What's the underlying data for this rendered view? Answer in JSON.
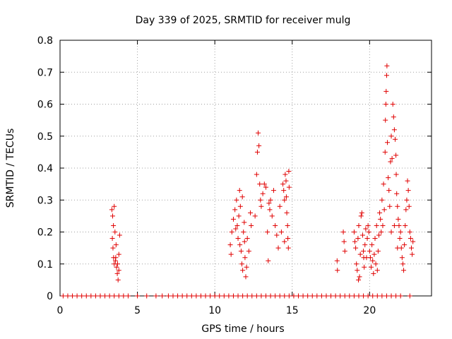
{
  "chart_data": {
    "type": "scatter",
    "title": "Day 339 of 2025, SRMTID for receiver mulg",
    "xlabel": "GPS time / hours",
    "ylabel": "SRMTID / TECUs",
    "xlim": [
      0,
      24
    ],
    "ylim": [
      0,
      0.8
    ],
    "grid": true,
    "marker": "+",
    "color": "#e00000",
    "x_ticks": [
      {
        "value": 0,
        "label": "0"
      },
      {
        "value": 5,
        "label": "5"
      },
      {
        "value": 10,
        "label": "10"
      },
      {
        "value": 15,
        "label": "15"
      },
      {
        "value": 20,
        "label": "20"
      }
    ],
    "y_ticks": [
      {
        "value": 0,
        "label": "0"
      },
      {
        "value": 0.1,
        "label": "0.1"
      },
      {
        "value": 0.2,
        "label": "0.2"
      },
      {
        "value": 0.3,
        "label": "0.3"
      },
      {
        "value": 0.4,
        "label": "0.4"
      },
      {
        "value": 0.5,
        "label": "0.5"
      },
      {
        "value": 0.6,
        "label": "0.6"
      },
      {
        "value": 0.7,
        "label": "0.7"
      },
      {
        "value": 0.8,
        "label": "0.8"
      }
    ],
    "series": [
      {
        "name": "SRMTID",
        "points": [
          [
            0.2,
            0
          ],
          [
            0.5,
            0
          ],
          [
            0.8,
            0
          ],
          [
            1.1,
            0
          ],
          [
            1.4,
            0
          ],
          [
            1.7,
            0
          ],
          [
            2.0,
            0
          ],
          [
            2.3,
            0
          ],
          [
            2.6,
            0
          ],
          [
            2.9,
            0
          ],
          [
            3.2,
            0
          ],
          [
            3.5,
            0
          ],
          [
            3.8,
            0
          ],
          [
            4.1,
            0
          ],
          [
            4.4,
            0
          ],
          [
            5.0,
            0
          ],
          [
            5.6,
            0
          ],
          [
            6.2,
            0
          ],
          [
            6.6,
            0
          ],
          [
            7.0,
            0
          ],
          [
            7.3,
            0
          ],
          [
            7.6,
            0
          ],
          [
            7.9,
            0
          ],
          [
            8.2,
            0
          ],
          [
            8.5,
            0
          ],
          [
            8.8,
            0
          ],
          [
            9.1,
            0
          ],
          [
            9.4,
            0
          ],
          [
            9.7,
            0
          ],
          [
            10.0,
            0
          ],
          [
            10.3,
            0
          ],
          [
            10.6,
            0
          ],
          [
            10.9,
            0
          ],
          [
            11.2,
            0
          ],
          [
            11.5,
            0
          ],
          [
            11.8,
            0
          ],
          [
            12.1,
            0
          ],
          [
            12.4,
            0
          ],
          [
            12.7,
            0
          ],
          [
            13.0,
            0
          ],
          [
            13.3,
            0
          ],
          [
            13.6,
            0
          ],
          [
            13.9,
            0
          ],
          [
            14.2,
            0
          ],
          [
            14.5,
            0
          ],
          [
            14.8,
            0
          ],
          [
            15.1,
            0
          ],
          [
            15.4,
            0
          ],
          [
            15.7,
            0
          ],
          [
            16.0,
            0
          ],
          [
            16.3,
            0
          ],
          [
            16.6,
            0
          ],
          [
            16.9,
            0
          ],
          [
            17.2,
            0
          ],
          [
            17.5,
            0
          ],
          [
            17.8,
            0
          ],
          [
            18.1,
            0
          ],
          [
            18.4,
            0
          ],
          [
            18.7,
            0
          ],
          [
            19.0,
            0
          ],
          [
            19.3,
            0
          ],
          [
            19.6,
            0
          ],
          [
            19.9,
            0
          ],
          [
            20.2,
            0
          ],
          [
            20.5,
            0
          ],
          [
            20.8,
            0
          ],
          [
            21.1,
            0
          ],
          [
            21.4,
            0
          ],
          [
            21.7,
            0
          ],
          [
            22.0,
            0
          ],
          [
            22.6,
            0
          ],
          [
            3.35,
            0.27
          ],
          [
            3.4,
            0.25
          ],
          [
            3.45,
            0.22
          ],
          [
            3.5,
            0.28
          ],
          [
            3.38,
            0.18
          ],
          [
            3.55,
            0.2
          ],
          [
            3.42,
            0.15
          ],
          [
            3.6,
            0.12
          ],
          [
            3.5,
            0.1
          ],
          [
            3.65,
            0.09
          ],
          [
            3.7,
            0.07
          ],
          [
            3.75,
            0.05
          ],
          [
            3.8,
            0.13
          ],
          [
            3.85,
            0.19
          ],
          [
            3.58,
            0.11
          ],
          [
            3.62,
            0.16
          ],
          [
            3.72,
            0.1
          ],
          [
            3.8,
            0.08
          ],
          [
            3.46,
            0.12
          ],
          [
            11.0,
            0.16
          ],
          [
            11.05,
            0.13
          ],
          [
            11.1,
            0.2
          ],
          [
            11.2,
            0.24
          ],
          [
            11.3,
            0.27
          ],
          [
            11.4,
            0.3
          ],
          [
            11.45,
            0.22
          ],
          [
            11.5,
            0.18
          ],
          [
            11.55,
            0.25
          ],
          [
            11.6,
            0.33
          ],
          [
            11.65,
            0.28
          ],
          [
            11.7,
            0.14
          ],
          [
            11.75,
            0.1
          ],
          [
            11.8,
            0.08
          ],
          [
            11.85,
            0.2
          ],
          [
            11.9,
            0.23
          ],
          [
            11.95,
            0.12
          ],
          [
            12.0,
            0.06
          ],
          [
            12.05,
            0.09
          ],
          [
            12.1,
            0.18
          ],
          [
            12.2,
            0.14
          ],
          [
            12.3,
            0.26
          ],
          [
            12.35,
            0.22
          ],
          [
            11.35,
            0.21
          ],
          [
            11.62,
            0.16
          ],
          [
            11.78,
            0.31
          ],
          [
            11.92,
            0.17
          ],
          [
            12.6,
            0.25
          ],
          [
            12.7,
            0.38
          ],
          [
            12.75,
            0.45
          ],
          [
            12.8,
            0.51
          ],
          [
            12.85,
            0.47
          ],
          [
            12.9,
            0.35
          ],
          [
            12.95,
            0.3
          ],
          [
            13.0,
            0.28
          ],
          [
            13.1,
            0.32
          ],
          [
            13.2,
            0.35
          ],
          [
            13.3,
            0.34
          ],
          [
            13.4,
            0.2
          ],
          [
            13.45,
            0.11
          ],
          [
            13.5,
            0.29
          ],
          [
            13.55,
            0.27
          ],
          [
            13.6,
            0.3
          ],
          [
            13.7,
            0.25
          ],
          [
            13.8,
            0.33
          ],
          [
            13.9,
            0.22
          ],
          [
            14.0,
            0.19
          ],
          [
            14.1,
            0.15
          ],
          [
            14.2,
            0.28
          ],
          [
            14.3,
            0.2
          ],
          [
            14.4,
            0.35
          ],
          [
            14.45,
            0.33
          ],
          [
            14.5,
            0.3
          ],
          [
            14.55,
            0.38
          ],
          [
            14.6,
            0.36
          ],
          [
            14.65,
            0.26
          ],
          [
            14.7,
            0.22
          ],
          [
            14.72,
            0.18
          ],
          [
            14.75,
            0.15
          ],
          [
            14.78,
            0.39
          ],
          [
            14.8,
            0.34
          ],
          [
            14.5,
            0.17
          ],
          [
            14.62,
            0.31
          ],
          [
            17.9,
            0.11
          ],
          [
            17.92,
            0.08
          ],
          [
            18.3,
            0.2
          ],
          [
            18.35,
            0.17
          ],
          [
            18.4,
            0.14
          ],
          [
            19.0,
            0.2
          ],
          [
            19.05,
            0.17
          ],
          [
            19.1,
            0.15
          ],
          [
            19.15,
            0.1
          ],
          [
            19.2,
            0.08
          ],
          [
            19.25,
            0.18
          ],
          [
            19.3,
            0.22
          ],
          [
            19.35,
            0.06
          ],
          [
            19.4,
            0.13
          ],
          [
            19.45,
            0.25
          ],
          [
            19.5,
            0.26
          ],
          [
            19.55,
            0.19
          ],
          [
            19.6,
            0.14
          ],
          [
            19.65,
            0.09
          ],
          [
            19.7,
            0.16
          ],
          [
            19.75,
            0.21
          ],
          [
            19.8,
            0.12
          ],
          [
            19.85,
            0.18
          ],
          [
            19.9,
            0.22
          ],
          [
            19.95,
            0.2
          ],
          [
            20.0,
            0.14
          ],
          [
            19.28,
            0.05
          ],
          [
            19.62,
            0.12
          ],
          [
            20.05,
            0.12
          ],
          [
            20.1,
            0.09
          ],
          [
            20.15,
            0.16
          ],
          [
            20.2,
            0.11
          ],
          [
            20.25,
            0.07
          ],
          [
            20.3,
            0.13
          ],
          [
            20.35,
            0.18
          ],
          [
            20.4,
            0.1
          ],
          [
            20.45,
            0.22
          ],
          [
            20.5,
            0.08
          ],
          [
            20.55,
            0.14
          ],
          [
            20.6,
            0.19
          ],
          [
            20.65,
            0.26
          ],
          [
            20.7,
            0.24
          ],
          [
            20.75,
            0.2
          ],
          [
            20.8,
            0.3
          ],
          [
            20.85,
            0.22
          ],
          [
            20.9,
            0.35
          ],
          [
            20.95,
            0.27
          ],
          [
            21.0,
            0.45
          ],
          [
            21.02,
            0.55
          ],
          [
            21.05,
            0.6
          ],
          [
            21.07,
            0.64
          ],
          [
            21.1,
            0.69
          ],
          [
            21.12,
            0.72
          ],
          [
            21.15,
            0.48
          ],
          [
            21.2,
            0.37
          ],
          [
            21.25,
            0.33
          ],
          [
            21.3,
            0.28
          ],
          [
            21.35,
            0.42
          ],
          [
            21.4,
            0.5
          ],
          [
            21.45,
            0.43
          ],
          [
            21.5,
            0.6
          ],
          [
            21.55,
            0.56
          ],
          [
            21.6,
            0.52
          ],
          [
            21.65,
            0.49
          ],
          [
            21.7,
            0.44
          ],
          [
            21.72,
            0.38
          ],
          [
            21.75,
            0.32
          ],
          [
            21.8,
            0.28
          ],
          [
            21.85,
            0.24
          ],
          [
            21.9,
            0.22
          ],
          [
            21.95,
            0.18
          ],
          [
            22.0,
            0.2
          ],
          [
            22.05,
            0.15
          ],
          [
            22.1,
            0.12
          ],
          [
            22.15,
            0.1
          ],
          [
            22.2,
            0.08
          ],
          [
            22.25,
            0.16
          ],
          [
            22.3,
            0.22
          ],
          [
            22.35,
            0.27
          ],
          [
            22.4,
            0.3
          ],
          [
            22.45,
            0.36
          ],
          [
            22.5,
            0.33
          ],
          [
            22.55,
            0.28
          ],
          [
            22.6,
            0.2
          ],
          [
            22.65,
            0.18
          ],
          [
            22.7,
            0.15
          ],
          [
            22.75,
            0.13
          ],
          [
            22.8,
            0.17
          ],
          [
            21.4,
            0.2
          ],
          [
            21.6,
            0.22
          ],
          [
            21.8,
            0.15
          ]
        ]
      }
    ]
  }
}
